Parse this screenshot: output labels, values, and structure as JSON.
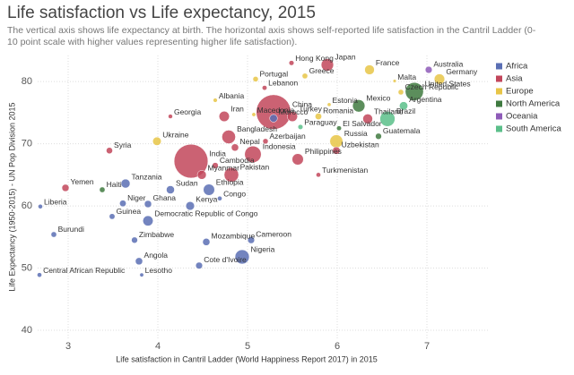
{
  "chart_data": {
    "type": "scatter",
    "title": "Life satisfaction vs Life expectancy, 2015",
    "subtitle": "The vertical axis shows life expectancy at birth. The horizontal axis shows self-reported life satisfaction in the Cantril Ladder (0-10 point scale with higher values representing higher life satisfaction).",
    "x_label": "Life satisfaction in Cantril Ladder (World Happiness Report 2017) in 2015",
    "y_label": "Life Expectancy (1950-2015) - UN Pop Division 2015",
    "xlim": [
      2.66,
      7.69
    ],
    "ylim": [
      38.7,
      84.2
    ],
    "xticks": [
      3,
      4,
      5,
      6,
      7
    ],
    "yticks": [
      40,
      50,
      60,
      70,
      80
    ],
    "grid": true,
    "legend": "top-right",
    "series": [
      {
        "name": "Africa",
        "color": "#5a6fb4",
        "labels": [
          "Central African Republic",
          "Burundi",
          "Liberia",
          "Tanzania",
          "Niger",
          "Guinea",
          "Ghana",
          "Zimbabwe",
          "Angola",
          "Lesotho",
          "Sudan",
          "Ethiopia",
          "Kenya",
          "Congo",
          "Democratic Republic of Congo",
          "Mozambique",
          "Cameroon",
          "Nigeria",
          "Cote d'Ivoire",
          "Morocco"
        ],
        "x": [
          2.68,
          2.84,
          2.69,
          3.64,
          3.61,
          3.49,
          3.89,
          3.74,
          3.79,
          3.82,
          4.14,
          4.57,
          4.36,
          4.69,
          3.89,
          4.54,
          5.04,
          4.94,
          4.46,
          5.29
        ],
        "values": [
          48.9,
          55.4,
          59.9,
          63.6,
          60.4,
          58.3,
          60.3,
          54.5,
          51.1,
          48.9,
          62.6,
          62.6,
          60.0,
          61.2,
          57.6,
          54.2,
          54.5,
          51.8,
          50.4,
          74.1
        ],
        "sizes": [
          5,
          11,
          4.5,
          53,
          20,
          12,
          27,
          16,
          28,
          2,
          40,
          100,
          47,
          5,
          77,
          28,
          23,
          182,
          23,
          34
        ]
      },
      {
        "name": "Asia",
        "color": "#c2465b",
        "labels": [
          "Yemen",
          "Syria",
          "Georgia",
          "Iran",
          "Bangladesh",
          "India",
          "Cambodia",
          "Myanmar",
          "Pakistan",
          "Nepal",
          "Indonesia",
          "Azerbaijan",
          "China",
          "Turkey",
          "Lebanon",
          "Hong Kong",
          "Japan",
          "Philippines",
          "Uzbekistan",
          "Turkmenistan",
          "Thailand"
        ],
        "x": [
          2.97,
          3.46,
          4.14,
          4.74,
          4.79,
          4.37,
          4.64,
          4.49,
          4.82,
          4.86,
          5.06,
          5.2,
          5.29,
          5.5,
          5.19,
          5.49,
          5.89,
          5.56,
          5.99,
          5.79,
          6.34
        ],
        "values": [
          62.9,
          68.9,
          74.4,
          74.4,
          71.1,
          67.2,
          66.5,
          65.0,
          65.0,
          69.4,
          68.3,
          70.4,
          75.1,
          74.4,
          79.0,
          83.0,
          82.7,
          67.5,
          68.9,
          65.0,
          74.0
        ],
        "sizes": [
          27,
          18,
          4,
          79,
          161,
          1310,
          15,
          53,
          189,
          28,
          258,
          10,
          1380,
          78,
          6,
          7,
          127,
          101,
          31,
          5,
          68
        ]
      },
      {
        "name": "Europe",
        "color": "#e8c547",
        "labels": [
          "Albania",
          "Ukraine",
          "Macedonia",
          "Portugal",
          "Greece",
          "Estonia",
          "Romania",
          "Russia",
          "France",
          "Malta",
          "Czech Republic",
          "Germany"
        ],
        "x": [
          4.64,
          3.99,
          5.07,
          5.09,
          5.64,
          5.91,
          5.79,
          5.99,
          6.36,
          6.64,
          6.71,
          7.14
        ],
        "values": [
          77.0,
          70.4,
          74.7,
          80.4,
          80.9,
          76.3,
          74.4,
          70.4,
          81.9,
          80.1,
          78.3,
          80.4
        ],
        "sizes": [
          3,
          45,
          2,
          10,
          11,
          1.3,
          20,
          144,
          66,
          0.4,
          10.5,
          81
        ]
      },
      {
        "name": "North America",
        "color": "#3f7a40",
        "labels": [
          "Haiti",
          "El Salvador",
          "Mexico",
          "Guatemala",
          "United States"
        ],
        "x": [
          3.38,
          6.02,
          6.24,
          6.46,
          6.86
        ],
        "values": [
          62.6,
          72.5,
          76.1,
          71.2,
          78.4
        ],
        "sizes": [
          11,
          6,
          127,
          16,
          321
        ]
      },
      {
        "name": "Oceania",
        "color": "#8e5bb8",
        "labels": [
          "Australia"
        ],
        "x": [
          7.02
        ],
        "values": [
          81.9
        ],
        "sizes": [
          24
        ]
      },
      {
        "name": "South America",
        "color": "#5bbf8a",
        "labels": [
          "Paraguay",
          "Brazil",
          "Argentina"
        ],
        "x": [
          5.59,
          6.56,
          6.74
        ],
        "values": [
          72.7,
          74.0,
          76.1
        ],
        "sizes": [
          7,
          206,
          43
        ]
      }
    ]
  }
}
